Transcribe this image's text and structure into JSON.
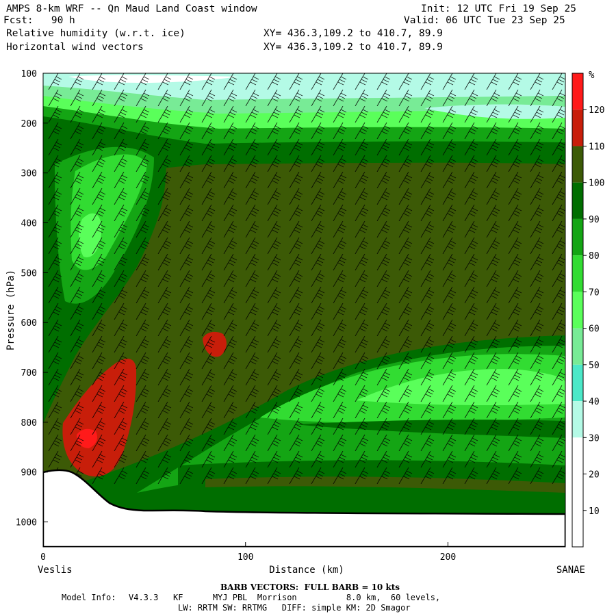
{
  "header": {
    "title": "AMPS 8-km WRF -- Qn Maud Land Coast window",
    "init": "Init: 12 UTC Fri 19 Sep 25",
    "fcst": "Fcst:   90 h",
    "valid": "Valid: 06 UTC Tue 23 Sep 25",
    "field1": "Relative humidity (w.r.t. ice)",
    "field2": "Horizontal wind vectors",
    "xy1": "XY= 436.3,109.2 to 410.7, 89.9",
    "xy2": "XY= 436.3,109.2 to 410.7, 89.9"
  },
  "axes": {
    "ylabel": "Pressure (hPa)",
    "xlabel": "Distance (km)",
    "left_end": "Veslis",
    "right_end": "SANAE",
    "y_ticks": [
      "100",
      "200",
      "300",
      "400",
      "500",
      "600",
      "700",
      "800",
      "900",
      "1000"
    ],
    "x_ticks": [
      "0",
      "100",
      "200"
    ]
  },
  "colorbar": {
    "unit": "%",
    "labels": [
      "120",
      "110",
      "100",
      "90",
      "80",
      "70",
      "60",
      "50",
      "40",
      "30",
      "20",
      "10"
    ],
    "colors": [
      "#ff1a1a",
      "#c81e0a",
      "#3c5a06",
      "#006e00",
      "#14a514",
      "#32dc32",
      "#5aff5a",
      "#78eb96",
      "#4ce8c8",
      "#b4fae6",
      "#ffffff",
      "#ffffff",
      "#ffffff"
    ]
  },
  "footer": {
    "barb": "BARB VECTORS:  FULL BARB = 10 kts",
    "model_label": "Model Info:",
    "model_line1": "V4.3.3   KF      MYJ PBL  Morrison          8.0 km,  60 levels,",
    "model_line2": "LW: RRTM SW: RRTMG   DIFF: simple KM: 2D Smagor"
  },
  "chart_data": {
    "type": "heatmap",
    "title": "Relative humidity (w.r.t. ice)",
    "xlabel": "Distance (km)",
    "ylabel": "Pressure (hPa)",
    "xlim": [
      0,
      258
    ],
    "ylim": [
      1050,
      100
    ],
    "x_ticks": [
      0,
      100,
      200
    ],
    "y_ticks": [
      100,
      200,
      300,
      400,
      500,
      600,
      700,
      800,
      900,
      1000
    ],
    "colorbar_unit": "%",
    "colorbar_levels": [
      10,
      20,
      30,
      40,
      50,
      60,
      70,
      80,
      90,
      100,
      110,
      120
    ],
    "terrain_surface_hPa": [
      [
        0,
        898
      ],
      [
        8,
        895
      ],
      [
        20,
        905
      ],
      [
        30,
        935
      ],
      [
        38,
        965
      ],
      [
        50,
        980
      ],
      [
        70,
        978
      ],
      [
        90,
        985
      ],
      [
        150,
        985
      ],
      [
        258,
        985
      ]
    ],
    "regions": [
      {
        "desc": "upper layer 100-240 hPa",
        "rh_range": [
          30,
          70
        ]
      },
      {
        "desc": "mid-troposphere 250-640 hPa",
        "rh_range": [
          100,
          110
        ]
      },
      {
        "desc": "supersaturated pocket near x=20-40 km, 680-890 hPa",
        "rh_range": [
          110,
          120
        ]
      },
      {
        "desc": "small pocket near x=85 km, 620-660 hPa",
        "rh_range": [
          110,
          120
        ]
      },
      {
        "desc": "dry tongue x=15-40 km, 250-450 hPa",
        "rh_range": [
          70,
          90
        ]
      },
      {
        "desc": "lower layer x>120 km, 650-850 hPa",
        "rh_range": [
          70,
          90
        ]
      }
    ],
    "wind_barbs": "Horizontal wind vectors, full barb = 10 kts"
  }
}
